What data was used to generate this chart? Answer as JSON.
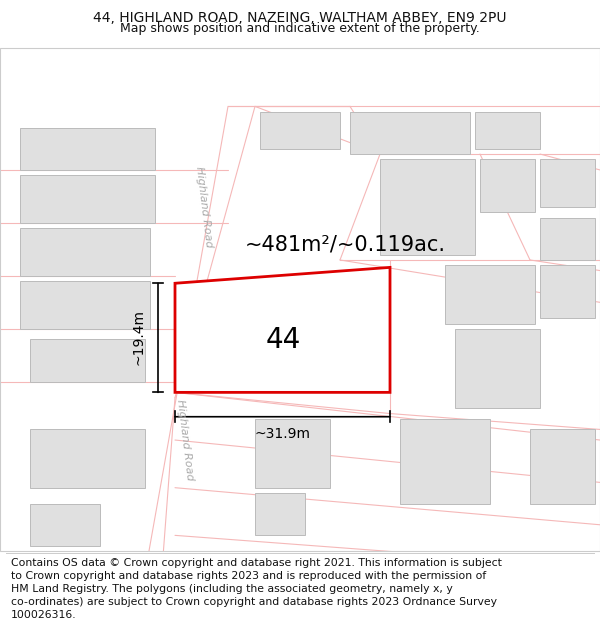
{
  "title_line1": "44, HIGHLAND ROAD, NAZEING, WALTHAM ABBEY, EN9 2PU",
  "title_line2": "Map shows position and indicative extent of the property.",
  "footer_lines": [
    "Contains OS data © Crown copyright and database right 2021. This information is subject",
    "to Crown copyright and database rights 2023 and is reproduced with the permission of",
    "HM Land Registry. The polygons (including the associated geometry, namely x, y",
    "co-ordinates) are subject to Crown copyright and database rights 2023 Ordnance Survey",
    "100026316."
  ],
  "area_label": "~481m²/~0.119ac.",
  "number_label": "44",
  "width_label": "~31.9m",
  "height_label": "~19.4m",
  "road_label": "Highland Road",
  "bg_color": "#ffffff",
  "road_line_color": "#f5b8b8",
  "dim_line_color": "#000000",
  "building_fill": "#e0e0e0",
  "building_edge": "#bbbbbb",
  "plot_fill": "#ffffff",
  "plot_edge": "#dd0000",
  "title_fontsize": 10,
  "subtitle_fontsize": 9,
  "footer_fontsize": 7.8,
  "area_fontsize": 15,
  "number_fontsize": 20,
  "dim_fontsize": 10,
  "road_fontsize": 8
}
